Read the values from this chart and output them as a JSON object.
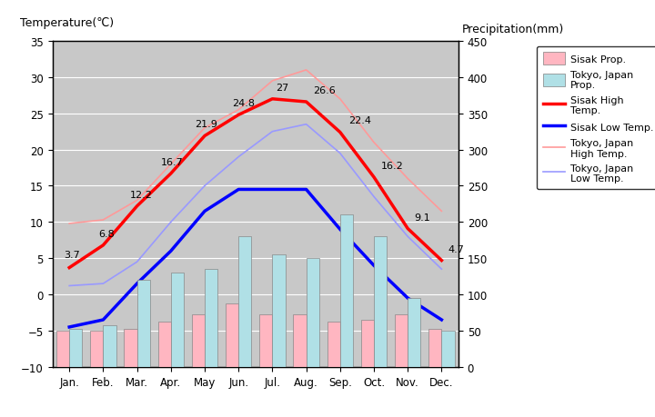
{
  "months": [
    "Jan.",
    "Feb.",
    "Mar.",
    "Apr.",
    "May",
    "Jun.",
    "Jul.",
    "Aug.",
    "Sep.",
    "Oct.",
    "Nov.",
    "Dec."
  ],
  "sisak_high": [
    3.7,
    6.8,
    12.2,
    16.7,
    21.9,
    24.8,
    27.0,
    26.6,
    22.4,
    16.2,
    9.1,
    4.7
  ],
  "sisak_low": [
    -4.5,
    -3.5,
    1.5,
    6.0,
    11.5,
    14.5,
    14.5,
    14.5,
    9.0,
    4.0,
    -0.5,
    -3.5
  ],
  "tokyo_high": [
    9.8,
    10.3,
    13.0,
    18.0,
    23.0,
    25.5,
    29.5,
    31.0,
    27.0,
    21.0,
    16.0,
    11.5
  ],
  "tokyo_low": [
    1.2,
    1.5,
    4.5,
    10.0,
    15.0,
    19.0,
    22.5,
    23.5,
    19.5,
    13.5,
    8.0,
    3.5
  ],
  "sisak_precip": [
    50,
    50,
    52,
    62,
    72,
    88,
    72,
    72,
    62,
    65,
    72,
    52
  ],
  "tokyo_precip": [
    52,
    57,
    120,
    130,
    135,
    180,
    155,
    150,
    210,
    180,
    95,
    50
  ],
  "sisak_high_color": "#FF0000",
  "sisak_low_color": "#0000FF",
  "tokyo_high_color": "#FF9999",
  "tokyo_low_color": "#9999FF",
  "sisak_precip_color": "#FFB6C1",
  "tokyo_precip_color": "#B0E0E6",
  "bg_color": "#C8C8C8",
  "temp_ylim": [
    -10,
    35
  ],
  "precip_ylim": [
    0,
    450
  ],
  "title_left": "Temperature(℃)",
  "title_right": "Precipitation(mm)",
  "sisak_high_labels": [
    "3.7",
    "6.8",
    "12.2",
    "16.7",
    "21.9",
    "24.8",
    "27",
    "26.6",
    "22.4",
    "16.2",
    "9.1",
    "4.7"
  ]
}
